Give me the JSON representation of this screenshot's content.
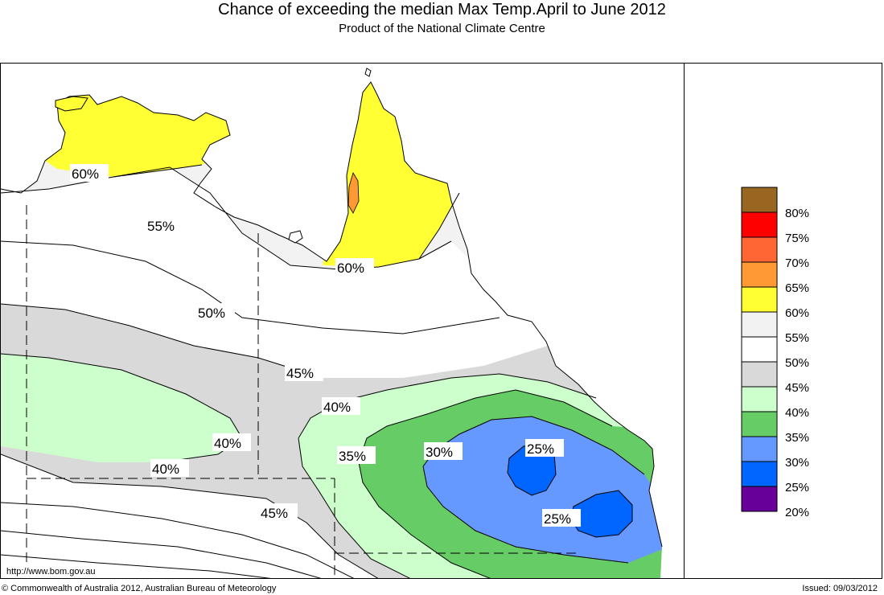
{
  "header": {
    "title": "Chance of exceeding the median Max Temp.April to June 2012",
    "subtitle": "Product of the National Climate Centre"
  },
  "map": {
    "contour_labels": [
      "60%",
      "55%",
      "50%",
      "60%",
      "45%",
      "40%",
      "40%",
      "35%",
      "30%",
      "25%",
      "40%",
      "45%",
      "25%"
    ]
  },
  "legend": {
    "items": [
      {
        "label": "80%",
        "color": "#996622"
      },
      {
        "label": "75%",
        "color": "#ff0000"
      },
      {
        "label": "70%",
        "color": "#ff6633"
      },
      {
        "label": "65%",
        "color": "#ff9933"
      },
      {
        "label": "60%",
        "color": "#ffff33"
      },
      {
        "label": "55%",
        "color": "#f2f2f2"
      },
      {
        "label": "50%",
        "color": "#ffffff"
      },
      {
        "label": "45%",
        "color": "#d9d9d9"
      },
      {
        "label": "40%",
        "color": "#ccffcc"
      },
      {
        "label": "35%",
        "color": "#66cc66"
      },
      {
        "label": "30%",
        "color": "#6699ff"
      },
      {
        "label": "25%",
        "color": "#0066ff"
      },
      {
        "label": "20%",
        "color": "#660099"
      }
    ]
  },
  "footer": {
    "url": "http://www.bom.gov.au",
    "copyright": "© Commonwealth of Australia 2012, Australian Bureau of Meteorology",
    "issued": "Issued: 09/03/2012"
  }
}
